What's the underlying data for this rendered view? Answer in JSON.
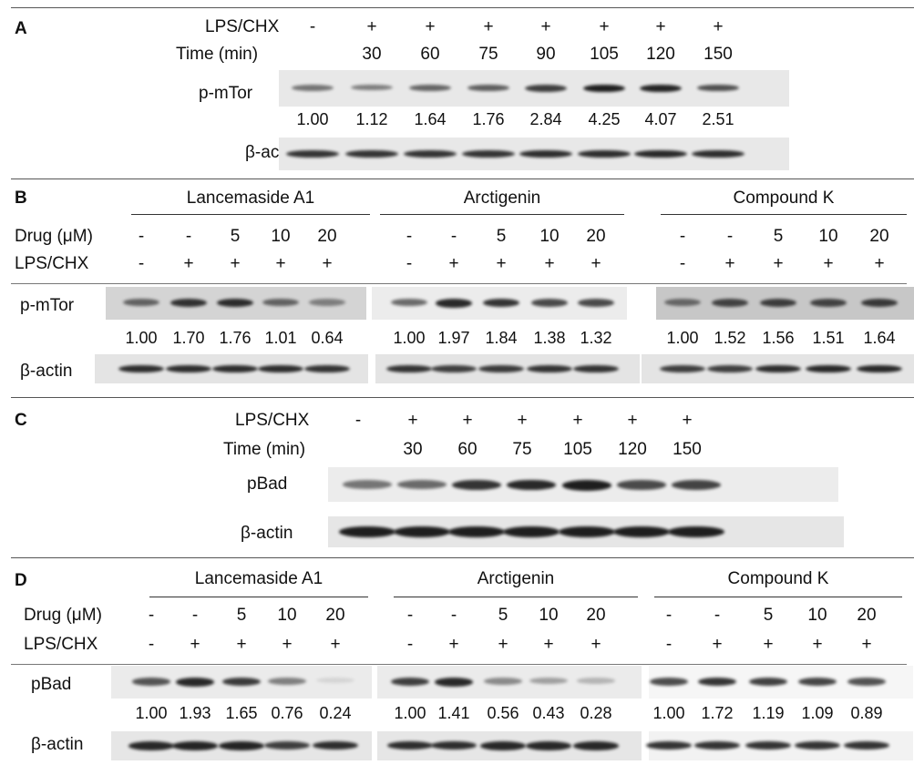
{
  "A": {
    "letter": "A",
    "row1_label": "LPS/CHX",
    "row2_label": "Time (min)",
    "lps": [
      "-",
      "+",
      "+",
      "+",
      "+",
      "+",
      "+",
      "+"
    ],
    "time": [
      "",
      "30",
      "60",
      "75",
      "90",
      "105",
      "120",
      "150"
    ],
    "blot1_label": "p-mTor",
    "values": [
      "1.00",
      "1.12",
      "1.64",
      "1.76",
      "2.84",
      "4.25",
      "4.07",
      "2.51"
    ],
    "blot2_label": "β-actin"
  },
  "B": {
    "letter": "B",
    "groups": [
      "Lancemaside A1",
      "Arctigenin",
      "Compound K"
    ],
    "row1_label": "Drug (μM)",
    "row2_label": "LPS/CHX",
    "drug": [
      "-",
      "-",
      "5",
      "10",
      "20"
    ],
    "lps": [
      "-",
      "+",
      "+",
      "+",
      "+"
    ],
    "blot1_label": "p-mTor",
    "values": [
      [
        "1.00",
        "1.70",
        "1.76",
        "1.01",
        "0.64"
      ],
      [
        "1.00",
        "1.97",
        "1.84",
        "1.38",
        "1.32"
      ],
      [
        "1.00",
        "1.52",
        "1.56",
        "1.51",
        "1.64"
      ]
    ],
    "blot2_label": "β-actin"
  },
  "C": {
    "letter": "C",
    "row1_label": "LPS/CHX",
    "row2_label": "Time (min)",
    "lps": [
      "-",
      "+",
      "+",
      "+",
      "+",
      "+",
      "+"
    ],
    "time": [
      "",
      "30",
      "60",
      "75",
      "105",
      "120",
      "150"
    ],
    "blot1_label": "pBad",
    "blot2_label": "β-actin"
  },
  "D": {
    "letter": "D",
    "groups": [
      "Lancemaside A1",
      "Arctigenin",
      "Compound K"
    ],
    "row1_label": "Drug (μM)",
    "row2_label": "LPS/CHX",
    "drug": [
      "-",
      "-",
      "5",
      "10",
      "20"
    ],
    "lps": [
      "-",
      "+",
      "+",
      "+",
      "+"
    ],
    "blot1_label": "pBad",
    "values": [
      [
        "1.00",
        "1.93",
        "1.65",
        "0.76",
        "0.24"
      ],
      [
        "1.00",
        "1.41",
        "0.56",
        "0.43",
        "0.28"
      ],
      [
        "1.00",
        "1.72",
        "1.19",
        "1.09",
        "0.89"
      ]
    ],
    "blot2_label": "β-actin"
  },
  "colors": {
    "band": "#141414",
    "blot_bg": "#e7e7e7",
    "blot_bg_dark": "#c9c9c9"
  },
  "band_intensity": {
    "A_pmtor": [
      0.55,
      0.5,
      0.62,
      0.65,
      0.8,
      0.95,
      0.92,
      0.72
    ],
    "A_actin": [
      0.85,
      0.85,
      0.85,
      0.85,
      0.88,
      0.88,
      0.9,
      0.88
    ],
    "B_pmtor": [
      [
        0.6,
        0.85,
        0.88,
        0.6,
        0.45
      ],
      [
        0.6,
        0.9,
        0.85,
        0.75,
        0.75
      ],
      [
        0.55,
        0.75,
        0.78,
        0.75,
        0.8
      ]
    ],
    "B_actin": [
      [
        0.88,
        0.88,
        0.88,
        0.88,
        0.85
      ],
      [
        0.85,
        0.8,
        0.82,
        0.85,
        0.85
      ],
      [
        0.8,
        0.8,
        0.88,
        0.9,
        0.9
      ]
    ],
    "C_pbad": [
      0.55,
      0.6,
      0.85,
      0.9,
      0.95,
      0.75,
      0.78
    ],
    "C_actin": [
      0.95,
      0.95,
      0.95,
      0.95,
      0.95,
      0.95,
      0.95
    ],
    "D_pbad": [
      [
        0.7,
        0.9,
        0.82,
        0.5,
        0.1
      ],
      [
        0.8,
        0.9,
        0.45,
        0.35,
        0.25
      ],
      [
        0.75,
        0.85,
        0.8,
        0.78,
        0.72
      ]
    ],
    "D_actin": [
      [
        0.9,
        0.92,
        0.92,
        0.8,
        0.88
      ],
      [
        0.88,
        0.88,
        0.9,
        0.9,
        0.9
      ],
      [
        0.85,
        0.85,
        0.85,
        0.85,
        0.85
      ]
    ]
  }
}
